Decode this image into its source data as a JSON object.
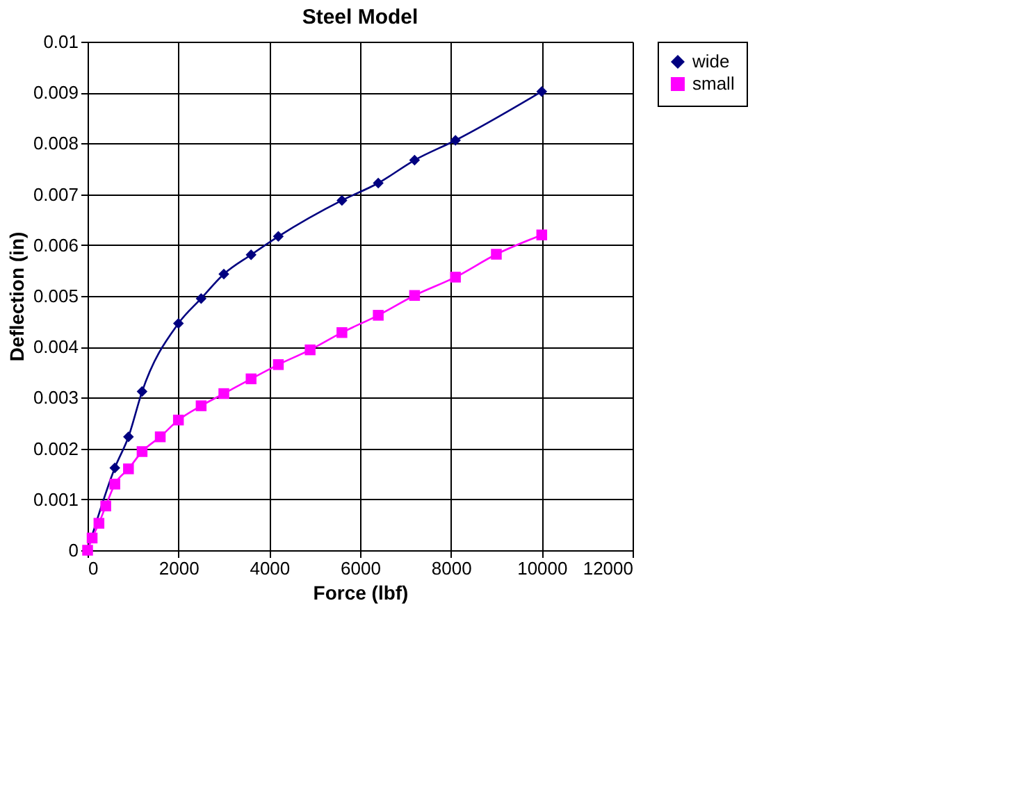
{
  "chart_data": {
    "type": "line",
    "title": "Steel Model",
    "xlabel": "Force (lbf)",
    "ylabel": "Deflection (in)",
    "series": [
      {
        "name": "wide",
        "color": "#000080",
        "marker": "diamond",
        "x": [
          0,
          600,
          900,
          1200,
          2000,
          2500,
          3000,
          3600,
          4200,
          5600,
          6400,
          7200,
          8100,
          10000
        ],
        "values": [
          0,
          0.00162,
          0.00223,
          0.00312,
          0.00446,
          0.00495,
          0.00543,
          0.00581,
          0.00617,
          0.00688,
          0.00722,
          0.00767,
          0.00806,
          0.00902
        ]
      },
      {
        "name": "small",
        "color": "#ff00ff",
        "marker": "square",
        "x": [
          0,
          100,
          250,
          400,
          600,
          900,
          1200,
          1600,
          2000,
          2500,
          3000,
          3600,
          4200,
          4900,
          5600,
          6400,
          7200,
          8100,
          9000,
          10000
        ],
        "values": [
          0,
          0.00024,
          0.00053,
          0.00087,
          0.0013,
          0.0016,
          0.00194,
          0.00223,
          0.00256,
          0.00284,
          0.00308,
          0.00337,
          0.00365,
          0.00394,
          0.00428,
          0.00462,
          0.00501,
          0.00537,
          0.00582,
          0.0062
        ]
      }
    ],
    "xlim": [
      0,
      12000
    ],
    "xticks": [
      0,
      2000,
      4000,
      6000,
      8000,
      10000,
      12000
    ],
    "ylim": [
      0,
      0.01
    ],
    "yticks": [
      0,
      0.001,
      0.002,
      0.003,
      0.004,
      0.005,
      0.006,
      0.007,
      0.008,
      0.009,
      0.01
    ],
    "grid": true,
    "legend": "right",
    "line_style": "solid"
  }
}
